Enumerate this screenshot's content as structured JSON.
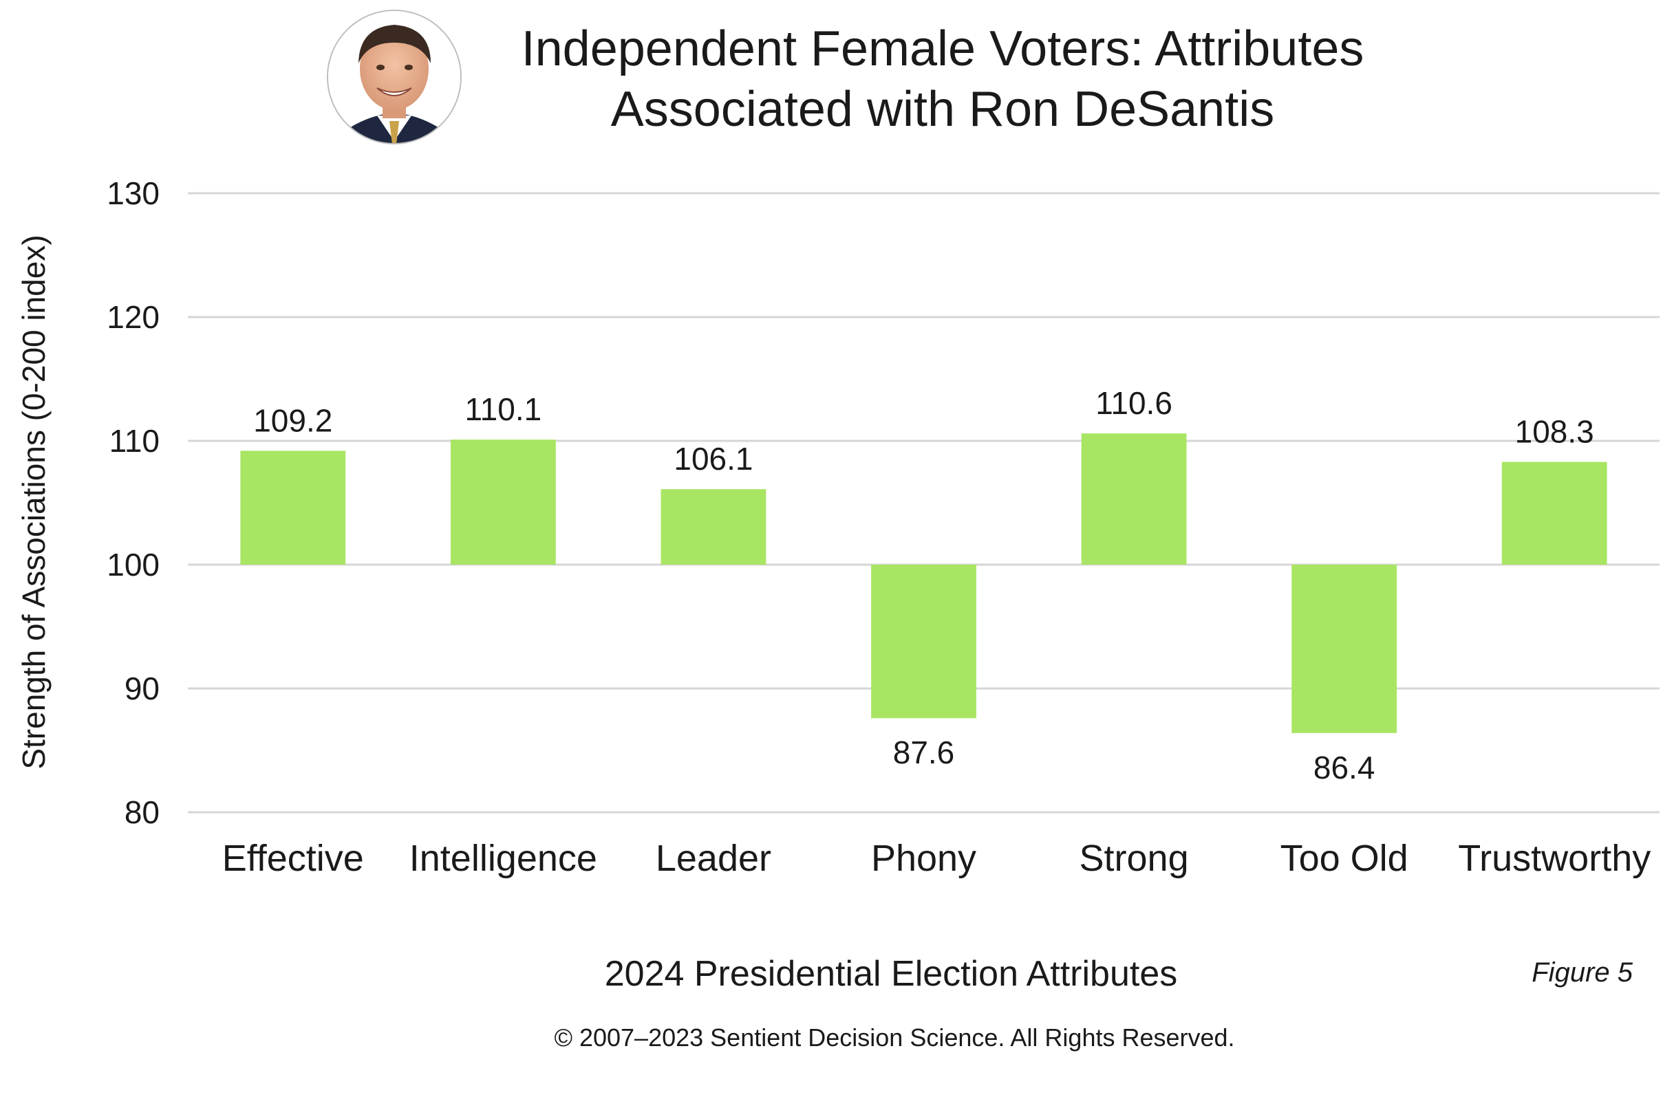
{
  "title_lines": [
    "Independent Female Voters: Attributes",
    "Associated with Ron DeSantis"
  ],
  "footer": {
    "figure_note": "Figure 5",
    "copyright": "© 2007–2023 Sentient Decision Science. All Rights Reserved."
  },
  "colors": {
    "bar": "#a8e562",
    "grid": "#d6d6d6",
    "text": "#1a1a1a"
  },
  "portrait": {
    "icon": "candidate-portrait-photo"
  },
  "chart_data": {
    "type": "bar",
    "title": "Independent Female Voters: Attributes Associated with Ron DeSantis",
    "xlabel": "2024 Presidential Election Attributes",
    "ylabel": "Strength of Associations (0-200 index)",
    "categories": [
      "Effective",
      "Intelligence",
      "Leader",
      "Phony",
      "Strong",
      "Too Old",
      "Trustworthy"
    ],
    "values": [
      109.2,
      110.1,
      106.1,
      87.6,
      110.6,
      86.4,
      108.3
    ],
    "value_labels": [
      "109.2",
      "110.1",
      "106.1",
      "87.6",
      "110.6",
      "86.4",
      "108.3"
    ],
    "baseline": 100,
    "ylim": [
      80,
      130
    ],
    "yticks": [
      80,
      90,
      100,
      110,
      120,
      130
    ],
    "ytick_labels": [
      "80",
      "90",
      "100",
      "110",
      "120",
      "130"
    ],
    "grid": true,
    "legend": "none"
  }
}
